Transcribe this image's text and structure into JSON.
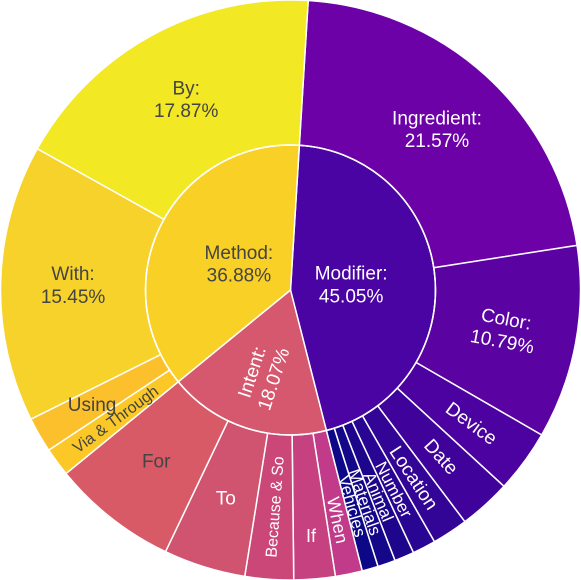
{
  "chart_data": {
    "type": "sunburst",
    "title": "",
    "inner": [
      {
        "name": "Modifier",
        "label": "Modifier:",
        "pct_label": "45.05%",
        "value": 45.05,
        "color": "#4a04a3"
      },
      {
        "name": "Intent",
        "label": "Intent:",
        "pct_label": "18.07%",
        "value": 18.07,
        "color": "#d6586e"
      },
      {
        "name": "Method",
        "label": "Method:",
        "pct_label": "36.88%",
        "value": 36.88,
        "color": "#f9d025"
      }
    ],
    "outer": [
      {
        "parent": "Modifier",
        "name": "Ingredient",
        "label": "Ingredient:",
        "pct_label": "21.57%",
        "value": 21.57,
        "color": "#6c01a8"
      },
      {
        "parent": "Modifier",
        "name": "Color",
        "label": "Color:",
        "pct_label": "10.79%",
        "value": 10.79,
        "color": "#5b02a2"
      },
      {
        "parent": "Modifier",
        "name": "Device",
        "label": "Device",
        "pct_label": "",
        "value": 3.5,
        "color": "#4b02a0"
      },
      {
        "parent": "Modifier",
        "name": "Date",
        "label": "Date",
        "pct_label": "",
        "value": 2.9,
        "color": "#3f039c"
      },
      {
        "parent": "Modifier",
        "name": "Location",
        "label": "Location",
        "pct_label": "",
        "value": 2.0,
        "color": "#320597"
      },
      {
        "parent": "Modifier",
        "name": "Number",
        "label": "Number",
        "pct_label": "",
        "value": 1.3,
        "color": "#280592"
      },
      {
        "parent": "Modifier",
        "name": "Animal",
        "label": "Animal",
        "pct_label": "",
        "value": 1.1,
        "color": "#1d068b"
      },
      {
        "parent": "Modifier",
        "name": "Materials",
        "label": "Materials",
        "pct_label": "",
        "value": 0.99,
        "color": "#150789"
      },
      {
        "parent": "Modifier",
        "name": "Vehicles",
        "label": "Vehicles",
        "pct_label": "",
        "value": 0.9,
        "color": "#0d0887"
      },
      {
        "parent": "Intent",
        "name": "When",
        "label": "When",
        "pct_label": "",
        "value": 1.5,
        "color": "#c23a8a"
      },
      {
        "parent": "Intent",
        "name": "If",
        "label": "If",
        "pct_label": "",
        "value": 2.3,
        "color": "#c6417f"
      },
      {
        "parent": "Intent",
        "name": "Because & So",
        "label": "Because & So",
        "pct_label": "",
        "value": 2.7,
        "color": "#cb4778"
      },
      {
        "parent": "Intent",
        "name": "To",
        "label": "To",
        "pct_label": "",
        "value": 4.57,
        "color": "#d05470"
      },
      {
        "parent": "Intent",
        "name": "For",
        "label": "For",
        "pct_label": "",
        "value": 7.0,
        "color": "#d85a66"
      },
      {
        "parent": "Method",
        "name": "Via & Through",
        "label": "Via & Through",
        "pct_label": "",
        "value": 1.6,
        "color": "#fcc828"
      },
      {
        "parent": "Method",
        "name": "Using",
        "label": "Using",
        "pct_label": "",
        "value": 1.96,
        "color": "#fbc02b"
      },
      {
        "parent": "Method",
        "name": "With",
        "label": "With:",
        "pct_label": "15.45%",
        "value": 15.45,
        "color": "#f7d22b"
      },
      {
        "parent": "Method",
        "name": "By",
        "label": "By:",
        "pct_label": "17.87%",
        "value": 17.87,
        "color": "#f2e824"
      }
    ]
  }
}
